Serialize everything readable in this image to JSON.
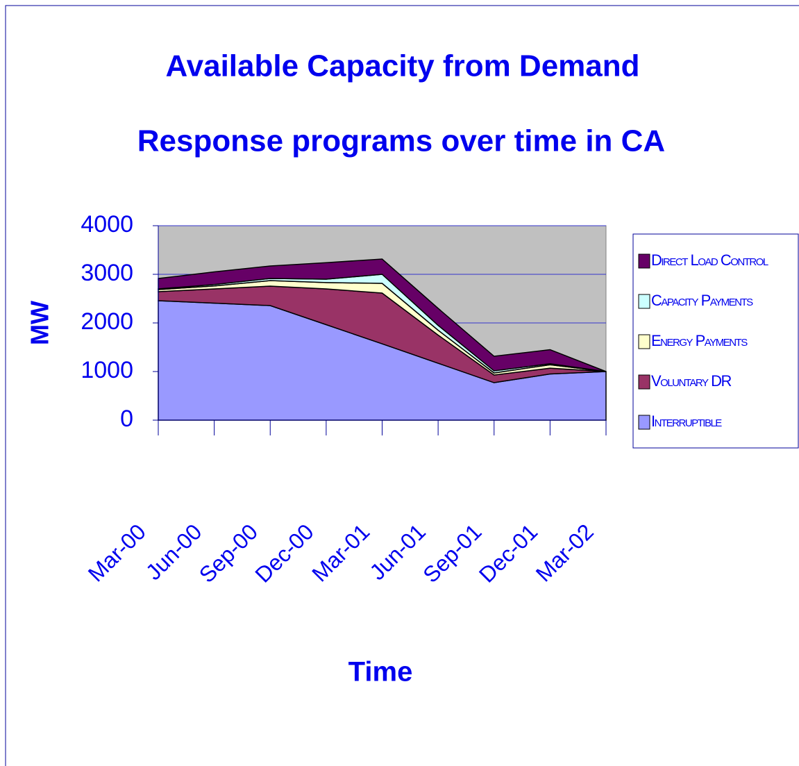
{
  "chart_data": {
    "type": "stacked-area",
    "title": [
      "Available Capacity from Demand",
      "Response programs over time in CA"
    ],
    "x_label": "Time",
    "y_label": "MW",
    "categories": [
      "Mar-00",
      "Jun-00",
      "Sep-00",
      "Dec-00",
      "Mar-01",
      "Jun-01",
      "Sep-01",
      "Dec-01",
      "Mar-02"
    ],
    "series": [
      {
        "name": "Interruptible",
        "color": "#9999ff",
        "values": [
          2457,
          2407,
          2357,
          1964,
          1571,
          1171,
          771,
          950,
          1000
        ]
      },
      {
        "name": "Voluntary DR",
        "color": "#993366",
        "values": [
          186,
          293,
          400,
          736,
          1043,
          579,
          158,
          120,
          0
        ]
      },
      {
        "name": "Energy Payments",
        "color": "#ffffcc",
        "values": [
          43,
          60,
          114,
          130,
          200,
          100,
          42,
          70,
          0
        ]
      },
      {
        "name": "Capacity Payments",
        "color": "#ccffff",
        "values": [
          14,
          30,
          43,
          70,
          186,
          100,
          43,
          20,
          0
        ]
      },
      {
        "name": "Direct Load Control",
        "color": "#660066",
        "values": [
          214,
          260,
          257,
          340,
          314,
          350,
          300,
          290,
          0
        ]
      }
    ],
    "ylim": [
      0,
      4000
    ],
    "yticks": [
      0,
      1000,
      2000,
      3000,
      4000
    ],
    "grid": true,
    "legend": "right"
  }
}
